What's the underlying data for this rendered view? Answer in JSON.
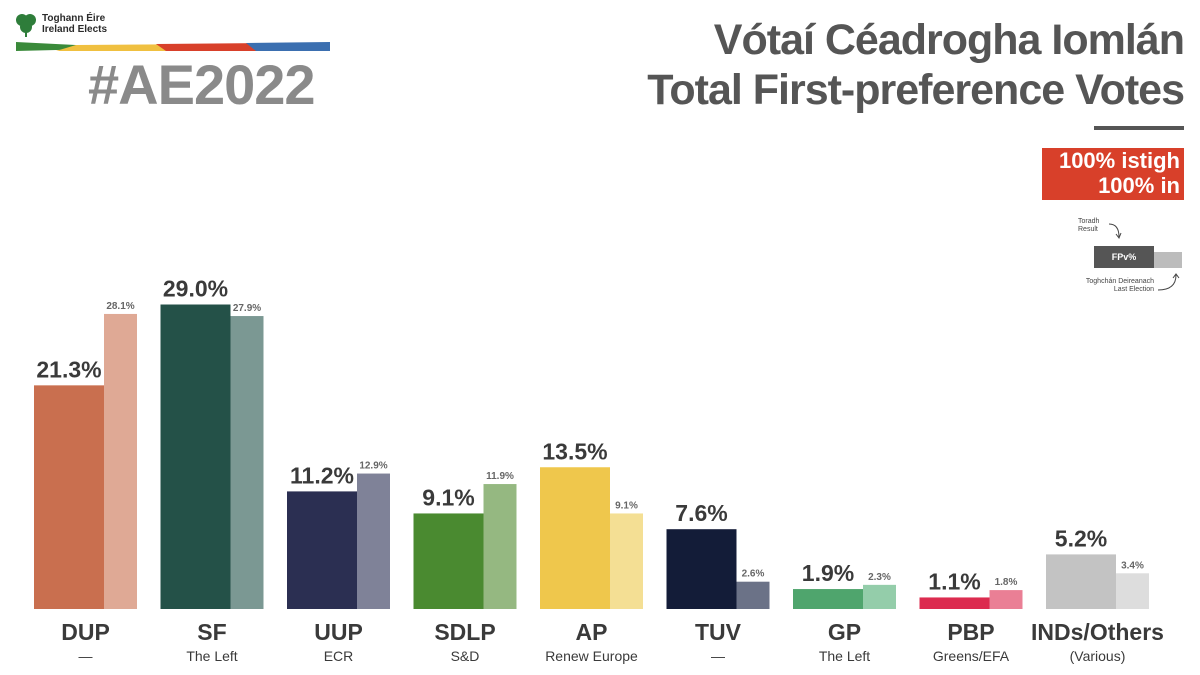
{
  "brand": {
    "name_ga": "Toghann Éire",
    "name_en": "Ireland Elects",
    "hashtag": "#AE2022",
    "stripe_colors": [
      "#3a8a3a",
      "#f0c040",
      "#d8402a",
      "#3b6fb0"
    ]
  },
  "header": {
    "title_ga": "Vótaí Céadrogha Iomlán",
    "title_en": "Total First-preference Votes"
  },
  "counted": {
    "line_ga": "100% istigh",
    "line_en": "100% in",
    "color": "#d8402a"
  },
  "key": {
    "result_ga": "Toradh",
    "result_en": "Result",
    "bar_label": "FPv%",
    "last_ga": "Toghchán Deireanach",
    "last_en": "Last Election"
  },
  "chart_data": {
    "type": "bar",
    "unit": "%",
    "ylim": [
      0,
      30
    ],
    "categories": [
      "DUP",
      "SF",
      "UUP",
      "SDLP",
      "AP",
      "TUV",
      "GP",
      "PBP",
      "INDs/Others"
    ],
    "groups": [
      "—",
      "The Left",
      "ECR",
      "S&D",
      "Renew Europe",
      "—",
      "The Left",
      "Greens/EFA",
      "(Various)"
    ],
    "series": [
      {
        "values": [
          21.3,
          29.0,
          11.2,
          9.1,
          13.5,
          7.6,
          1.9,
          1.1,
          5.2
        ],
        "labels": [
          "21.3%",
          "29.0%",
          "11.2%",
          "9.1%",
          "13.5%",
          "7.6%",
          "1.9%",
          "1.1%",
          "5.2%"
        ]
      },
      {
        "values": [
          28.1,
          27.9,
          12.9,
          11.9,
          9.1,
          2.6,
          2.3,
          1.8,
          3.4
        ],
        "labels": [
          "28.1%",
          "27.9%",
          "12.9%",
          "11.9%",
          "9.1%",
          "2.6%",
          "2.3%",
          "1.8%",
          "3.4%"
        ]
      }
    ],
    "colors": [
      "#c96f4f",
      "#245148",
      "#2b2f52",
      "#4a8a30",
      "#efc74c",
      "#131c38",
      "#4fa56d",
      "#dc2b4f",
      "#c3c3c3"
    ],
    "colors_last": [
      "#dfa995",
      "#7b9893",
      "#7f8298",
      "#95b881",
      "#f4df94",
      "#6b7287",
      "#94cdaa",
      "#ea7f95",
      "#dddddd"
    ],
    "grid": false,
    "legend": "top-right"
  }
}
